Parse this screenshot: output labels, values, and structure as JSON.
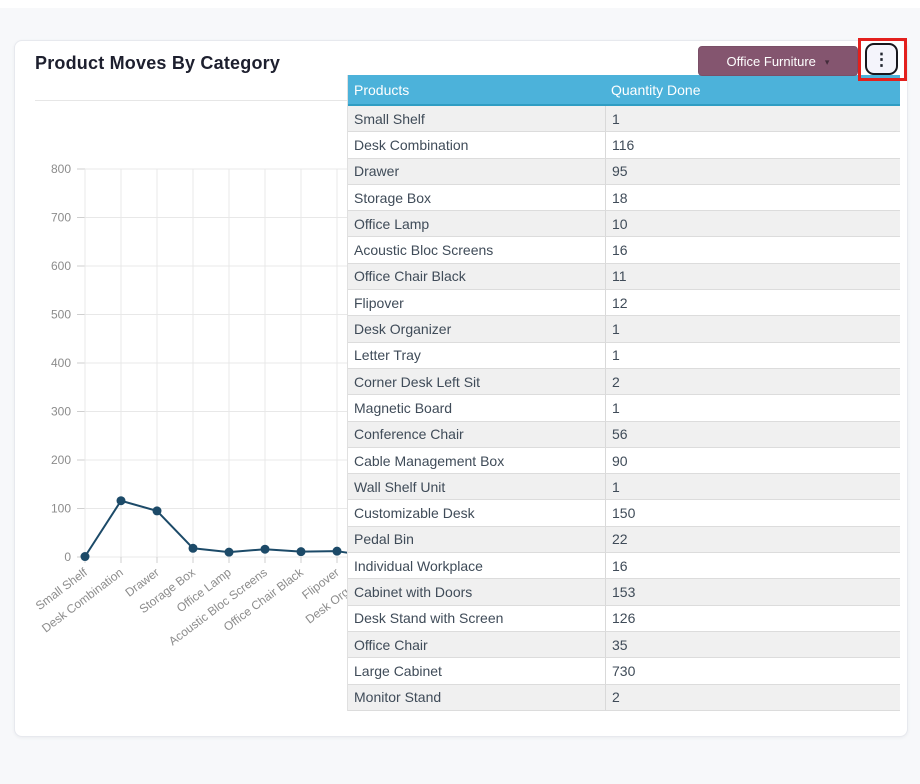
{
  "card": {
    "title": "Product Moves By Category",
    "category_button": {
      "label": "Office Furniture",
      "caret": "▾"
    },
    "kebab_icon": "⋮"
  },
  "table": {
    "columns": [
      "Products",
      "Quantity Done"
    ],
    "rows": [
      [
        "Small Shelf",
        1
      ],
      [
        "Desk Combination",
        116
      ],
      [
        "Drawer",
        95
      ],
      [
        "Storage Box",
        18
      ],
      [
        "Office Lamp",
        10
      ],
      [
        "Acoustic Bloc Screens",
        16
      ],
      [
        "Office Chair Black",
        11
      ],
      [
        "Flipover",
        12
      ],
      [
        "Desk Organizer",
        1
      ],
      [
        "Letter Tray",
        1
      ],
      [
        "Corner Desk Left Sit",
        2
      ],
      [
        "Magnetic Board",
        1
      ],
      [
        "Conference Chair",
        56
      ],
      [
        "Cable Management Box",
        90
      ],
      [
        "Wall Shelf Unit",
        1
      ],
      [
        "Customizable Desk",
        150
      ],
      [
        "Pedal Bin",
        22
      ],
      [
        "Individual Workplace",
        16
      ],
      [
        "Cabinet with Doors",
        153
      ],
      [
        "Desk Stand with Screen",
        126
      ],
      [
        "Office Chair",
        35
      ],
      [
        "Large Cabinet",
        730
      ],
      [
        "Monitor Stand",
        2
      ]
    ]
  },
  "chart_data": {
    "type": "line",
    "title": "Product Moves By Category",
    "categories": [
      "Small Shelf",
      "Desk Combination",
      "Drawer",
      "Storage Box",
      "Office Lamp",
      "Acoustic Bloc Screens",
      "Office Chair Black",
      "Flipover",
      "Desk Organizer",
      "Letter Tray",
      "Corner Desk Left Sit",
      "Magnetic Board",
      "Conference Chair",
      "Cable Management Box",
      "Wall Shelf Unit",
      "Customizable Desk",
      "Pedal Bin",
      "Individual Workplace",
      "Cabinet with Doors",
      "Desk Stand with Screen",
      "Office Chair",
      "Large Cabinet",
      "Monitor Stand"
    ],
    "values": [
      1,
      116,
      95,
      18,
      10,
      16,
      11,
      12,
      1,
      1,
      2,
      1,
      56,
      90,
      1,
      150,
      22,
      16,
      153,
      126,
      35,
      730,
      2
    ],
    "xlabel": "",
    "ylabel": "",
    "ylim": [
      0,
      800
    ],
    "y_ticks": [
      0,
      100,
      200,
      300,
      400,
      500,
      600,
      700,
      800
    ],
    "grid": true,
    "legend": "none",
    "line_color": "#1c4a68",
    "point_color": "#1c4a68"
  },
  "colors": {
    "accent_purple": "#84556f",
    "table_header_blue": "#4cb2da",
    "highlight_red": "#e3201d",
    "line_blue": "#1c4a68"
  }
}
